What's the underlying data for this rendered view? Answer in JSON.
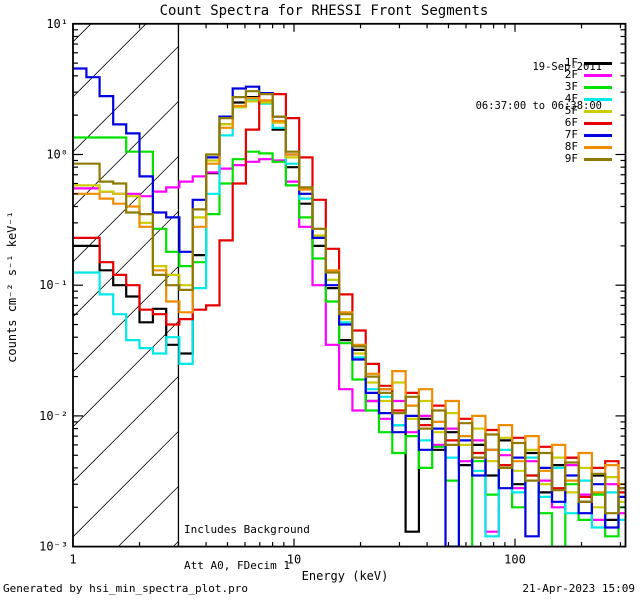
{
  "title": "Count Spectra for RHESSI Front Segments",
  "header": {
    "date": "19-Sep-2011",
    "time_range": "06:37:00 to 06:38:00"
  },
  "note": {
    "line1": "Includes Background",
    "line2": "Att A0, FDecim 1"
  },
  "footer": {
    "generated_by": "Generated by hsi_min_spectra_plot.pro",
    "timestamp": "21-Apr-2023 15:09"
  },
  "chart_data": {
    "type": "line",
    "mode": "histogram-steps",
    "title": "Count Spectra for RHESSI Front Segments",
    "xlabel": "Energy (keV)",
    "ylabel": "counts cm⁻² s⁻¹ keV⁻¹",
    "xscale": "log",
    "yscale": "log",
    "xlim": [
      1,
      316
    ],
    "ylim": [
      0.001,
      10
    ],
    "x_major_ticks": [
      1,
      10,
      100
    ],
    "x_tick_labels": [
      "1",
      "10",
      "100"
    ],
    "y_major_ticks": [
      10,
      1,
      0.1,
      0.01,
      0.001
    ],
    "y_tick_labels": [
      "10¹",
      "10⁰",
      "10⁻¹",
      "10⁻²",
      "10⁻³"
    ],
    "grid": false,
    "legend_position": "top-right-outside",
    "hatched_region": {
      "x_min": 1,
      "x_max": 3
    },
    "frame_color": "#000000",
    "bin_edges": [
      1.0,
      1.15,
      1.32,
      1.52,
      1.74,
      2.0,
      2.3,
      2.64,
      3.03,
      3.48,
      4.0,
      4.6,
      5.28,
      6.06,
      6.96,
      8.0,
      9.19,
      10.56,
      12.13,
      13.93,
      16.0,
      18.38,
      21.11,
      24.25,
      27.86,
      32.0,
      36.76,
      42.22,
      48.5,
      55.72,
      64.0,
      73.52,
      84.45,
      97.01,
      111.4,
      128.0,
      147.0,
      168.9,
      194.0,
      222.9,
      256.0,
      294.1
    ],
    "series": [
      {
        "name": "1F",
        "color": "#000000",
        "values": [
          0.2,
          0.2,
          0.13,
          0.1,
          0.082,
          0.052,
          0.066,
          0.035,
          0.03,
          0.17,
          0.72,
          1.7,
          2.5,
          2.75,
          2.5,
          1.55,
          0.8,
          0.42,
          0.2,
          0.095,
          0.038,
          0.032,
          0.013,
          0.016,
          0.0085,
          0.0013,
          0.0095,
          0.0055,
          0.0075,
          0.0042,
          0.006,
          0.0035,
          0.0065,
          0.003,
          0.0052,
          0.0026,
          0.0042,
          0.0048,
          0.0022,
          0.0035,
          0.0016,
          0.0028
        ]
      },
      {
        "name": "2F",
        "color": "#FF00FF",
        "values": [
          0.55,
          0.55,
          0.52,
          0.5,
          0.5,
          0.48,
          0.52,
          0.56,
          0.62,
          0.68,
          0.73,
          0.78,
          0.83,
          0.88,
          0.92,
          0.9,
          0.62,
          0.28,
          0.1,
          0.035,
          0.016,
          0.011,
          0.013,
          0.0095,
          0.013,
          0.0075,
          0.01,
          0.006,
          0.008,
          0.0045,
          0.0065,
          0.0013,
          0.005,
          0.0028,
          0.0045,
          0.0032,
          0.002,
          0.0042,
          0.0025,
          0.0016,
          0.003,
          0.0018
        ]
      },
      {
        "name": "3F",
        "color": "#00E100",
        "values": [
          1.35,
          1.35,
          1.35,
          1.35,
          1.05,
          1.05,
          0.27,
          0.18,
          0.14,
          0.15,
          0.35,
          0.6,
          0.92,
          1.05,
          1.02,
          0.88,
          0.58,
          0.33,
          0.16,
          0.075,
          0.036,
          0.019,
          0.011,
          0.0075,
          0.0052,
          0.007,
          0.004,
          0.0058,
          0.0032,
          0.0009,
          0.0045,
          0.0025,
          0.004,
          0.002,
          0.0035,
          0.0018,
          0.0009,
          0.003,
          0.0016,
          0.0025,
          0.0012,
          0.002
        ]
      },
      {
        "name": "4F",
        "color": "#00E8E8",
        "values": [
          0.125,
          0.125,
          0.085,
          0.06,
          0.038,
          0.033,
          0.03,
          0.04,
          0.025,
          0.095,
          0.5,
          1.4,
          2.3,
          2.6,
          2.45,
          1.6,
          0.85,
          0.46,
          0.23,
          0.11,
          0.052,
          0.028,
          0.016,
          0.014,
          0.0085,
          0.012,
          0.0065,
          0.009,
          0.0048,
          0.007,
          0.0038,
          0.0012,
          0.0055,
          0.0026,
          0.0048,
          0.0024,
          0.004,
          0.0018,
          0.0032,
          0.0014,
          0.0026,
          0.0016
        ]
      },
      {
        "name": "5F",
        "color": "#CCCC00",
        "values": [
          0.58,
          0.58,
          0.52,
          0.5,
          0.48,
          0.3,
          0.14,
          0.12,
          0.1,
          0.33,
          0.9,
          1.7,
          2.3,
          2.55,
          2.5,
          1.75,
          0.95,
          0.5,
          0.24,
          0.11,
          0.055,
          0.03,
          0.018,
          0.013,
          0.018,
          0.0095,
          0.013,
          0.0075,
          0.0105,
          0.006,
          0.008,
          0.0045,
          0.0068,
          0.0038,
          0.0055,
          0.003,
          0.0048,
          0.0026,
          0.004,
          0.002,
          0.0034,
          0.0022
        ]
      },
      {
        "name": "6F",
        "color": "#E60000",
        "values": [
          0.23,
          0.23,
          0.15,
          0.12,
          0.1,
          0.065,
          0.06,
          0.05,
          0.055,
          0.065,
          0.07,
          0.22,
          0.6,
          1.55,
          2.95,
          2.9,
          1.9,
          0.95,
          0.45,
          0.19,
          0.085,
          0.045,
          0.025,
          0.017,
          0.011,
          0.015,
          0.0085,
          0.012,
          0.0065,
          0.0095,
          0.0052,
          0.0078,
          0.0042,
          0.0068,
          0.0035,
          0.0058,
          0.0028,
          0.0048,
          0.0024,
          0.004,
          0.0045,
          0.0026
        ]
      },
      {
        "name": "7F",
        "color": "#0000E0",
        "values": [
          4.55,
          3.9,
          2.8,
          1.7,
          1.45,
          0.68,
          0.36,
          0.33,
          0.18,
          0.45,
          0.95,
          1.95,
          3.2,
          3.3,
          2.95,
          1.95,
          1.0,
          0.5,
          0.23,
          0.1,
          0.05,
          0.027,
          0.015,
          0.0105,
          0.0075,
          0.01,
          0.0055,
          0.008,
          0.001,
          0.0065,
          0.0035,
          0.0055,
          0.0028,
          0.0048,
          0.0012,
          0.004,
          0.0022,
          0.0035,
          0.0018,
          0.003,
          0.0014,
          0.0024
        ]
      },
      {
        "name": "8F",
        "color": "#F08C00",
        "values": [
          0.5,
          0.5,
          0.46,
          0.42,
          0.4,
          0.28,
          0.13,
          0.075,
          0.062,
          0.28,
          0.85,
          1.6,
          2.35,
          2.7,
          2.6,
          1.8,
          1.0,
          0.54,
          0.27,
          0.13,
          0.062,
          0.035,
          0.021,
          0.016,
          0.022,
          0.012,
          0.016,
          0.009,
          0.013,
          0.007,
          0.01,
          0.0055,
          0.0085,
          0.0045,
          0.007,
          0.0038,
          0.006,
          0.0032,
          0.0052,
          0.0026,
          0.0042,
          0.003
        ]
      },
      {
        "name": "9F",
        "color": "#8E7A00",
        "values": [
          0.85,
          0.85,
          0.62,
          0.6,
          0.36,
          0.35,
          0.12,
          0.1,
          0.092,
          0.38,
          1.0,
          1.9,
          2.75,
          3.05,
          2.9,
          1.95,
          1.05,
          0.56,
          0.27,
          0.125,
          0.06,
          0.034,
          0.02,
          0.015,
          0.0105,
          0.014,
          0.008,
          0.011,
          0.006,
          0.0088,
          0.0048,
          0.0072,
          0.004,
          0.0062,
          0.0032,
          0.0052,
          0.0027,
          0.0044,
          0.0022,
          0.0036,
          0.0018,
          0.0028
        ]
      }
    ]
  }
}
